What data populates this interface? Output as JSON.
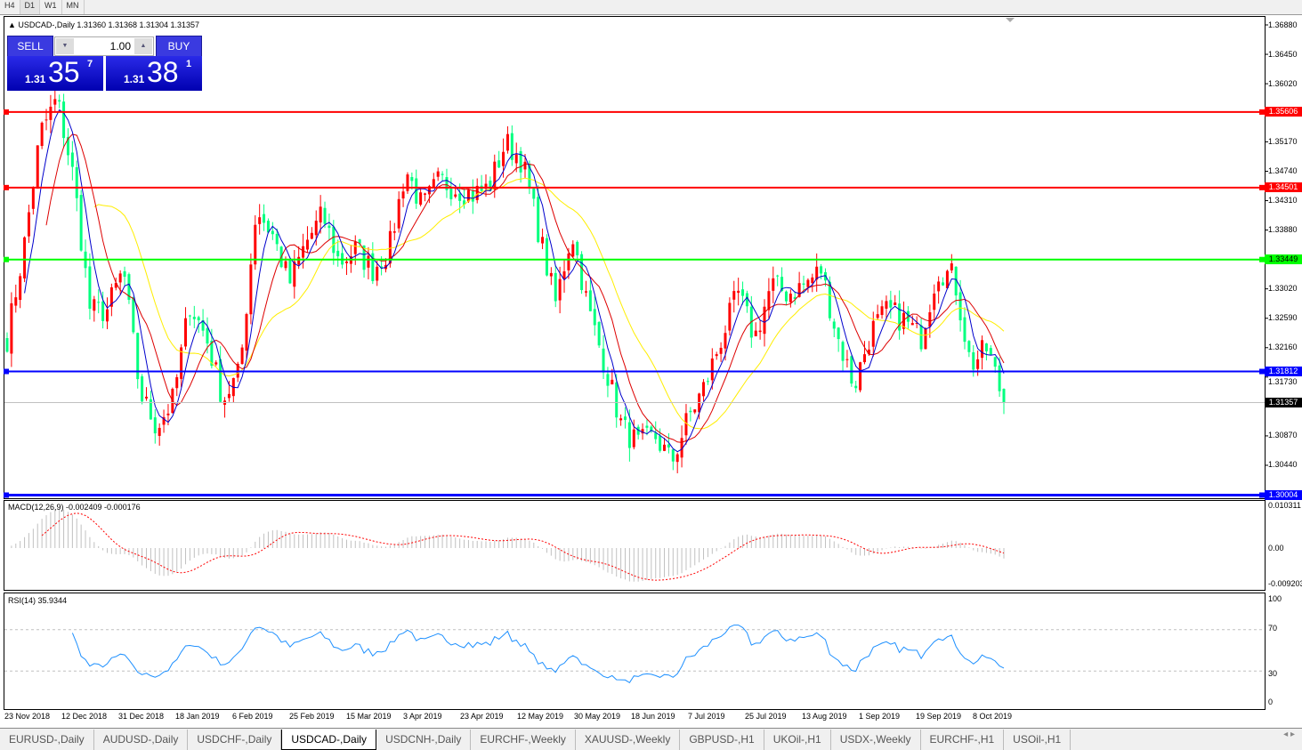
{
  "timeframes": [
    "H4",
    "D1",
    "W1",
    "MN"
  ],
  "active_timeframe": "D1",
  "chart": {
    "header": "USDCAD-,Daily  1.31360 1.31368 1.31304 1.31357",
    "symbol": "USDCAD-",
    "period": "Daily",
    "ohlc": [
      "1.31360",
      "1.31368",
      "1.31304",
      "1.31357"
    ]
  },
  "trade_panel": {
    "sell_label": "SELL",
    "buy_label": "BUY",
    "lot": "1.00",
    "sell_big": "1.31",
    "sell_main": "35",
    "sell_sup": "7",
    "buy_big": "1.31",
    "buy_main": "38",
    "buy_sup": "1"
  },
  "price_axis": [
    "1.36880",
    "1.36450",
    "1.36020",
    "1.35170",
    "1.34740",
    "1.34310",
    "1.33880",
    "1.33020",
    "1.32590",
    "1.32160",
    "1.31730",
    "1.30870",
    "1.30440"
  ],
  "levels": [
    {
      "price": "1.35606",
      "color": "#ff0000"
    },
    {
      "price": "1.34501",
      "color": "#ff0000"
    },
    {
      "price": "1.33449",
      "color": "#00ff00"
    },
    {
      "price": "1.31812",
      "color": "#0000ff"
    },
    {
      "price": "1.30004",
      "color": "#0000ff"
    }
  ],
  "current_price": "1.31357",
  "macd": {
    "label": "MACD(12,26,9) -0.002409 -0.000176",
    "axis": [
      "0.010311",
      "0.00",
      "-0.009203"
    ]
  },
  "rsi": {
    "label": "RSI(14) 35.9344",
    "axis": [
      "100",
      "70",
      "30",
      "0"
    ]
  },
  "dates": [
    "23 Nov 2018",
    "12 Dec 2018",
    "31 Dec 2018",
    "18 Jan 2019",
    "6 Feb 2019",
    "25 Feb 2019",
    "15 Mar 2019",
    "3 Apr 2019",
    "23 Apr 2019",
    "12 May 2019",
    "30 May 2019",
    "18 Jun 2019",
    "7 Jul 2019",
    "25 Jul 2019",
    "13 Aug 2019",
    "1 Sep 2019",
    "19 Sep 2019",
    "8 Oct 2019"
  ],
  "tabs": [
    "EURUSD-,Daily",
    "AUDUSD-,Daily",
    "USDCHF-,Daily",
    "USDCAD-,Daily",
    "USDCNH-,Daily",
    "EURCHF-,Weekly",
    "XAUUSD-,Weekly",
    "GBPUSD-,H1",
    "UKOil-,H1",
    "USDX-,Weekly",
    "EURCHF-,H1",
    "USOil-,H1"
  ],
  "active_tab": "USDCAD-,Daily",
  "colors": {
    "bull": "#ff0000",
    "bear": "#00ff7f",
    "ma_fast": "#0000cc",
    "ma_mid": "#dd0000",
    "ma_slow": "#ffee00",
    "rsi": "#1e90ff"
  },
  "chart_data": {
    "type": "candlestick",
    "approx_closes": [
      1.323,
      1.336,
      1.353,
      1.358,
      1.3464,
      1.327,
      1.327,
      1.333,
      1.315,
      1.31,
      1.314,
      1.328,
      1.323,
      1.314,
      1.318,
      1.342,
      1.338,
      1.331,
      1.337,
      1.341,
      1.334,
      1.336,
      1.333,
      1.336,
      1.3477,
      1.342,
      1.346,
      1.345,
      1.344,
      1.345,
      1.3516,
      1.349,
      1.3386,
      1.328,
      1.3386,
      1.327,
      1.319,
      1.31,
      1.3074,
      1.3087,
      1.3048,
      1.3113,
      1.316,
      1.323,
      1.3295,
      1.323,
      1.3308,
      1.3295,
      1.3308,
      1.333,
      1.323,
      1.316,
      1.324,
      1.327,
      1.3256,
      1.323,
      1.333,
      1.332,
      1.319,
      1.3215,
      1.31357
    ]
  }
}
